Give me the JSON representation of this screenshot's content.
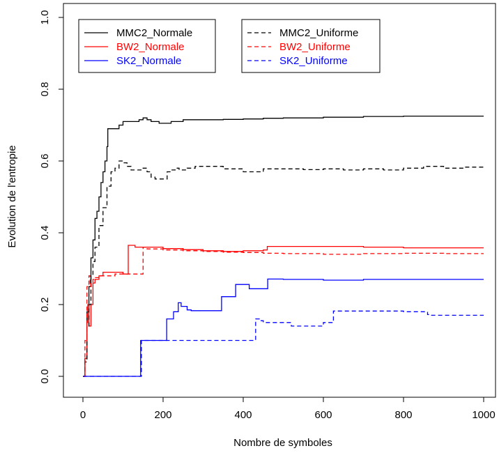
{
  "chart_data": {
    "type": "line",
    "title": "",
    "xlabel": "Nombre de symboles",
    "ylabel": "Evolution de l'entropie",
    "xlim": [
      0,
      1000
    ],
    "ylim": [
      0,
      1.0
    ],
    "x_ticks": [
      "0",
      "200",
      "400",
      "600",
      "800",
      "1000"
    ],
    "y_ticks": [
      "0.0",
      "0.2",
      "0.4",
      "0.6",
      "0.8",
      "1.0"
    ],
    "grid": false,
    "legend_position": "top",
    "series": [
      {
        "name": "MMC2_Normale",
        "color": "#000000",
        "dash": "solid",
        "x": [
          0,
          5,
          10,
          15,
          20,
          25,
          30,
          35,
          40,
          45,
          50,
          55,
          60,
          62,
          70,
          80,
          90,
          100,
          110,
          120,
          130,
          140,
          150,
          160,
          170,
          180,
          190,
          200,
          220,
          250,
          300,
          350,
          400,
          450,
          500,
          600,
          700,
          800,
          900,
          1000
        ],
        "y": [
          0.0,
          0.05,
          0.18,
          0.25,
          0.33,
          0.38,
          0.44,
          0.46,
          0.5,
          0.54,
          0.57,
          0.6,
          0.64,
          0.69,
          0.69,
          0.69,
          0.7,
          0.71,
          0.71,
          0.71,
          0.71,
          0.715,
          0.72,
          0.715,
          0.71,
          0.71,
          0.705,
          0.705,
          0.71,
          0.715,
          0.715,
          0.716,
          0.717,
          0.719,
          0.72,
          0.722,
          0.724,
          0.725,
          0.725,
          0.725
        ]
      },
      {
        "name": "BW2_Normale",
        "color": "#ff0000",
        "dash": "solid",
        "x": [
          0,
          5,
          10,
          12,
          15,
          18,
          20,
          25,
          30,
          35,
          40,
          50,
          60,
          70,
          80,
          100,
          113,
          120,
          130,
          150,
          200,
          250,
          300,
          350,
          400,
          450,
          460,
          500,
          600,
          700,
          800,
          900,
          1000
        ],
        "y": [
          0.0,
          0.05,
          0.15,
          0.2,
          0.14,
          0.14,
          0.2,
          0.26,
          0.27,
          0.27,
          0.28,
          0.29,
          0.29,
          0.29,
          0.29,
          0.285,
          0.365,
          0.365,
          0.36,
          0.36,
          0.356,
          0.353,
          0.35,
          0.348,
          0.35,
          0.352,
          0.362,
          0.362,
          0.362,
          0.36,
          0.358,
          0.358,
          0.358
        ]
      },
      {
        "name": "SK2_Normale",
        "color": "#0000ff",
        "dash": "solid",
        "x": [
          0,
          143,
          144,
          208,
          209,
          225,
          226,
          237,
          238,
          245,
          250,
          260,
          270,
          300,
          345,
          346,
          380,
          381,
          400,
          415,
          416,
          460,
          461,
          500,
          600,
          700,
          800,
          900,
          1000
        ],
        "y": [
          0.0,
          0.0,
          0.1,
          0.1,
          0.16,
          0.16,
          0.18,
          0.18,
          0.205,
          0.195,
          0.195,
          0.185,
          0.183,
          0.183,
          0.183,
          0.222,
          0.222,
          0.256,
          0.256,
          0.244,
          0.244,
          0.244,
          0.271,
          0.27,
          0.268,
          0.27,
          0.27,
          0.27,
          0.27
        ]
      },
      {
        "name": "MMC2_Uniforme",
        "color": "#000000",
        "dash": "dashed",
        "x": [
          0,
          5,
          10,
          15,
          20,
          25,
          30,
          40,
          50,
          60,
          70,
          80,
          90,
          100,
          110,
          120,
          130,
          140,
          150,
          160,
          170,
          180,
          200,
          210,
          220,
          230,
          240,
          260,
          280,
          300,
          350,
          400,
          450,
          500,
          550,
          600,
          650,
          700,
          750,
          800,
          850,
          900,
          950,
          1000
        ],
        "y": [
          0.0,
          0.04,
          0.14,
          0.2,
          0.28,
          0.32,
          0.36,
          0.42,
          0.47,
          0.53,
          0.57,
          0.58,
          0.6,
          0.595,
          0.585,
          0.575,
          0.575,
          0.575,
          0.58,
          0.57,
          0.555,
          0.55,
          0.55,
          0.57,
          0.575,
          0.58,
          0.575,
          0.58,
          0.585,
          0.585,
          0.578,
          0.57,
          0.578,
          0.578,
          0.576,
          0.578,
          0.575,
          0.578,
          0.575,
          0.58,
          0.585,
          0.58,
          0.583,
          0.585
        ]
      },
      {
        "name": "BW2_Uniforme",
        "color": "#ff0000",
        "dash": "dashed",
        "x": [
          0,
          5,
          10,
          15,
          18,
          20,
          25,
          30,
          40,
          50,
          60,
          80,
          100,
          140,
          148,
          150,
          160,
          200,
          250,
          300,
          350,
          400,
          450,
          500,
          600,
          700,
          800,
          900,
          1000
        ],
        "y": [
          0.0,
          0.1,
          0.25,
          0.28,
          0.25,
          0.26,
          0.27,
          0.275,
          0.28,
          0.28,
          0.28,
          0.285,
          0.285,
          0.285,
          0.285,
          0.36,
          0.355,
          0.352,
          0.35,
          0.348,
          0.346,
          0.345,
          0.343,
          0.342,
          0.34,
          0.342,
          0.343,
          0.342,
          0.342
        ]
      },
      {
        "name": "SK2_Uniforme",
        "color": "#0000ff",
        "dash": "dashed",
        "x": [
          0,
          145,
          146,
          430,
          431,
          440,
          450,
          470,
          500,
          520,
          560,
          600,
          620,
          625,
          700,
          800,
          860,
          870,
          900,
          1000
        ],
        "y": [
          0.0,
          0.0,
          0.1,
          0.1,
          0.16,
          0.155,
          0.15,
          0.15,
          0.15,
          0.14,
          0.14,
          0.15,
          0.15,
          0.182,
          0.182,
          0.18,
          0.172,
          0.17,
          0.17,
          0.17
        ]
      }
    ]
  }
}
